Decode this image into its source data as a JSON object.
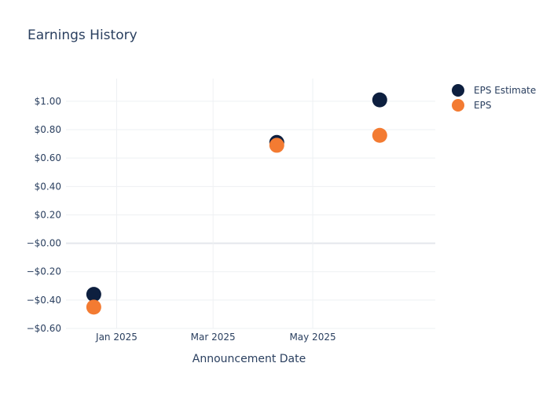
{
  "chart_data": {
    "type": "scatter",
    "title": "Earnings History",
    "xlabel": "Announcement Date",
    "ylabel": "",
    "ylim": [
      -0.6,
      1.16
    ],
    "xlim": [
      "2024-12-01",
      "2025-07-15"
    ],
    "x_ticks": [
      {
        "date": "2025-01-01",
        "label": "Jan 2025"
      },
      {
        "date": "2025-03-01",
        "label": "Mar 2025"
      },
      {
        "date": "2025-05-01",
        "label": "May 2025"
      }
    ],
    "y_ticks": [
      {
        "value": 1.0,
        "label": "$1.00"
      },
      {
        "value": 0.8,
        "label": "$0.80"
      },
      {
        "value": 0.6,
        "label": "$0.60"
      },
      {
        "value": 0.4,
        "label": "$0.40"
      },
      {
        "value": 0.2,
        "label": "$0.20"
      },
      {
        "value": 0.0,
        "label": "−$0.00"
      },
      {
        "value": -0.2,
        "label": "−$0.20"
      },
      {
        "value": -0.4,
        "label": "−$0.40"
      },
      {
        "value": -0.6,
        "label": "−$0.60"
      }
    ],
    "grid": true,
    "legend_position": "top-right",
    "series": [
      {
        "name": "EPS Estimate",
        "color": "#0d1f3f",
        "points": [
          {
            "x": "2024-12-18",
            "y": -0.36
          },
          {
            "x": "2025-04-09",
            "y": 0.71
          },
          {
            "x": "2025-06-11",
            "y": 1.01
          }
        ]
      },
      {
        "name": "EPS",
        "color": "#f37b32",
        "points": [
          {
            "x": "2024-12-18",
            "y": -0.45
          },
          {
            "x": "2025-04-09",
            "y": 0.69
          },
          {
            "x": "2025-06-11",
            "y": 0.76
          }
        ]
      }
    ]
  }
}
